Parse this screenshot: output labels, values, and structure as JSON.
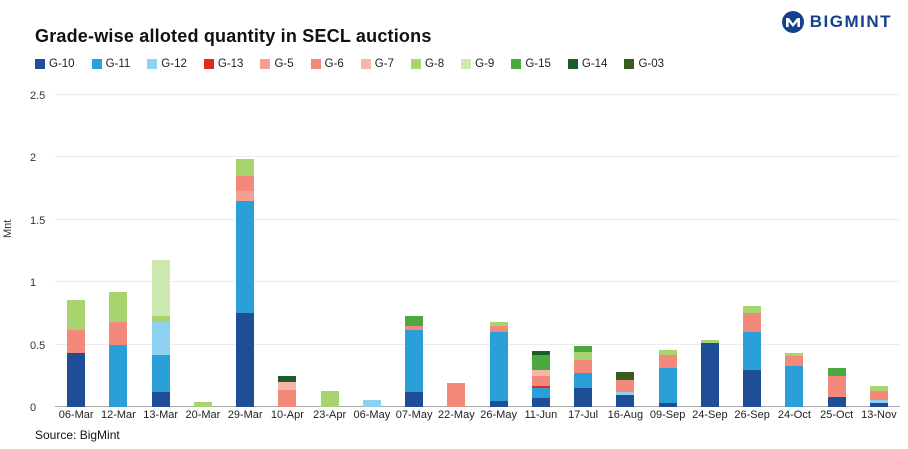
{
  "header": {
    "brand": "BIGMINT"
  },
  "source": "Source: BigMint",
  "chart_data": {
    "type": "bar",
    "stacked": true,
    "title": "Grade-wise alloted quantity in SECL auctions",
    "xlabel": "",
    "ylabel": "Mnt",
    "ylim": [
      0,
      2.5
    ],
    "y_ticks": [
      0,
      0.5,
      1,
      1.5,
      2,
      2.5
    ],
    "grid": true,
    "legend_position": "top",
    "categories": [
      "06-Mar",
      "12-Mar",
      "13-Mar",
      "20-Mar",
      "29-Mar",
      "10-Apr",
      "23-Apr",
      "06-May",
      "07-May",
      "22-May",
      "26-May",
      "11-Jun",
      "17-Jul",
      "16-Aug",
      "09-Sep",
      "24-Sep",
      "26-Sep",
      "24-Oct",
      "25-Oct",
      "13-Nov"
    ],
    "series": [
      {
        "name": "G-10",
        "color": "#1f4e96",
        "values": [
          0.43,
          0,
          0.12,
          0,
          0.75,
          0,
          0,
          0,
          0.12,
          0,
          0.05,
          0.07,
          0.15,
          0.1,
          0.03,
          0.51,
          0.3,
          0,
          0.08,
          0.03
        ]
      },
      {
        "name": "G-11",
        "color": "#2b9fd8",
        "values": [
          0,
          0.5,
          0.3,
          0,
          0.9,
          0,
          0,
          0,
          0.5,
          0,
          0.55,
          0.08,
          0.12,
          0,
          0.28,
          0,
          0.3,
          0.33,
          0,
          0
        ]
      },
      {
        "name": "G-12",
        "color": "#8ed0ef",
        "values": [
          0,
          0,
          0.26,
          0,
          0,
          0,
          0,
          0.06,
          0,
          0,
          0,
          0,
          0,
          0.02,
          0,
          0,
          0,
          0,
          0,
          0.03
        ]
      },
      {
        "name": "G-13",
        "color": "#e02b20",
        "values": [
          0,
          0,
          0,
          0,
          0,
          0,
          0,
          0,
          0,
          0,
          0,
          0.02,
          0,
          0,
          0,
          0,
          0,
          0,
          0,
          0
        ]
      },
      {
        "name": "G-5",
        "color": "#f59f91",
        "values": [
          0,
          0,
          0,
          0,
          0.08,
          0,
          0,
          0,
          0,
          0,
          0,
          0,
          0,
          0,
          0,
          0,
          0,
          0,
          0,
          0
        ]
      },
      {
        "name": "G-6",
        "color": "#f2897a",
        "values": [
          0.19,
          0.18,
          0,
          0,
          0.12,
          0.14,
          0,
          0,
          0.03,
          0.19,
          0.05,
          0.08,
          0.11,
          0.1,
          0.11,
          0,
          0.15,
          0.08,
          0.17,
          0.07
        ]
      },
      {
        "name": "G-7",
        "color": "#f7b6aa",
        "values": [
          0,
          0,
          0,
          0,
          0,
          0.06,
          0,
          0,
          0,
          0,
          0,
          0.05,
          0,
          0,
          0,
          0,
          0,
          0,
          0,
          0
        ]
      },
      {
        "name": "G-8",
        "color": "#a8d46f",
        "values": [
          0.24,
          0.24,
          0.05,
          0.04,
          0.14,
          0,
          0.13,
          0,
          0,
          0,
          0.03,
          0,
          0.06,
          0,
          0.04,
          0.03,
          0.06,
          0.02,
          0,
          0.04
        ]
      },
      {
        "name": "G-9",
        "color": "#cde9b0",
        "values": [
          0,
          0,
          0.45,
          0,
          0,
          0,
          0,
          0,
          0,
          0,
          0,
          0,
          0,
          0,
          0,
          0,
          0,
          0,
          0,
          0
        ]
      },
      {
        "name": "G-15",
        "color": "#4ba93f",
        "values": [
          0,
          0,
          0,
          0,
          0,
          0,
          0,
          0,
          0.08,
          0,
          0,
          0.12,
          0.05,
          0,
          0,
          0,
          0,
          0,
          0.06,
          0
        ]
      },
      {
        "name": "G-14",
        "color": "#1e5b2a",
        "values": [
          0,
          0,
          0,
          0,
          0,
          0.05,
          0,
          0,
          0,
          0,
          0,
          0.03,
          0,
          0,
          0,
          0,
          0,
          0,
          0,
          0
        ]
      },
      {
        "name": "G-03",
        "color": "#375c1e",
        "values": [
          0,
          0,
          0,
          0,
          0,
          0,
          0,
          0,
          0,
          0,
          0,
          0,
          0,
          0.06,
          0,
          0,
          0,
          0,
          0,
          0
        ]
      }
    ]
  }
}
